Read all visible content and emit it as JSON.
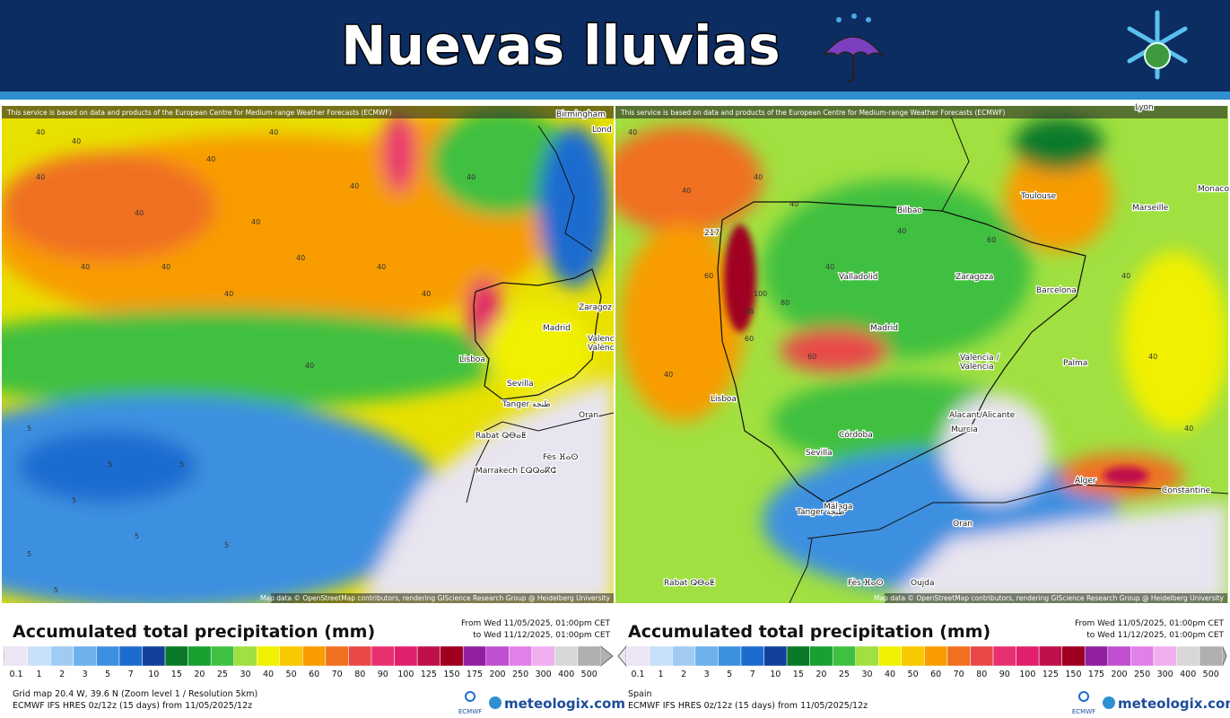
{
  "header": {
    "title": "Nuevas lluvias"
  },
  "legend": {
    "title": "Accumulated total precipitation (mm)",
    "period_from": "From Wed 11/05/2025, 01:00pm CET",
    "period_to": "to Wed 11/12/2025, 01:00pm CET",
    "values": [
      0.1,
      1,
      2,
      3,
      5,
      7,
      10,
      15,
      20,
      25,
      30,
      40,
      50,
      60,
      70,
      80,
      90,
      100,
      125,
      150,
      175,
      200,
      250,
      300,
      400,
      500
    ],
    "colors": [
      "#ece6f4",
      "#c8e0f8",
      "#a0ccf4",
      "#6cb0ec",
      "#3c90e0",
      "#1c6cd0",
      "#12409c",
      "#0a7a2a",
      "#18a030",
      "#40c040",
      "#a0e040",
      "#f0f000",
      "#f8c800",
      "#f89c00",
      "#f07020",
      "#e84848",
      "#e83070",
      "#e0206c",
      "#c0104c",
      "#a00020",
      "#9020a0",
      "#c050d0",
      "#e080e8",
      "#f0b0f0",
      "#d8d8d8",
      "#b0b0b0"
    ]
  },
  "brand": {
    "ecmwf": "ECMWF",
    "site": "meteologix.com"
  },
  "panels": [
    {
      "attribution": "This service is based on data and products of the European Centre for Medium-range Weather Forecasts (ECMWF)",
      "map_credit": "Map data © OpenStreetMap contributors, rendering GIScience Research Group @ Heidelberg University",
      "places": [
        "Birmingham",
        "Lond",
        "Zaragoz",
        "Madrid",
        "Valenc",
        "Valènc",
        "Lisboa",
        "Sevilla",
        "Tanger طنجة",
        "Oran",
        "Rabat ⵕⴱⴰⵟ",
        "Fès ⴼⴰⵙ",
        "Marrakech ⵎⵕⵕⴰⴽⵛ"
      ],
      "contour_labels": [
        40,
        40,
        40,
        40,
        40,
        40,
        40,
        40,
        40,
        40,
        40,
        40,
        40,
        40,
        40,
        40,
        5,
        5,
        5,
        5,
        5,
        5,
        5,
        5
      ],
      "footer": [
        "Grid map 20.4 W, 39.6 N (Zoom level 1 / Resolution 5km)",
        "ECMWF IFS HRES 0z/12z (15 days) from  11/05/2025/12z"
      ]
    },
    {
      "attribution": "This service is based on data and products of the European Centre for Medium-range Weather Forecasts (ECMWF)",
      "map_credit": "Map data © OpenStreetMap contributors, rendering GIScience Research Group @ Heidelberg University",
      "places": [
        "Lyon",
        "Toulouse",
        "Marseille",
        "Monaco",
        "Bilbao",
        "Valladolid",
        "Zaragoza",
        "Barcelona",
        "Madrid",
        "Valencia /",
        "València",
        "Palma",
        "Lisboa",
        "Alacant/Alicante",
        "Murcia",
        "Córdoba",
        "Sevilla",
        "Málaga",
        "Alger",
        "Constantine",
        "Tanger طنجة",
        "Oran",
        "Oujda",
        "Rabat ⵕⴱⴰⵟ",
        "Fès ⴼⴰⵙ",
        "217"
      ],
      "contour_labels": [
        40,
        40,
        60,
        40,
        40,
        40,
        80,
        40,
        60,
        100,
        80,
        60,
        40,
        40,
        40,
        60,
        40
      ],
      "footer": [
        "Spain",
        "ECMWF IFS HRES 0z/12z (15 days) from  11/05/2025/12z"
      ]
    }
  ]
}
